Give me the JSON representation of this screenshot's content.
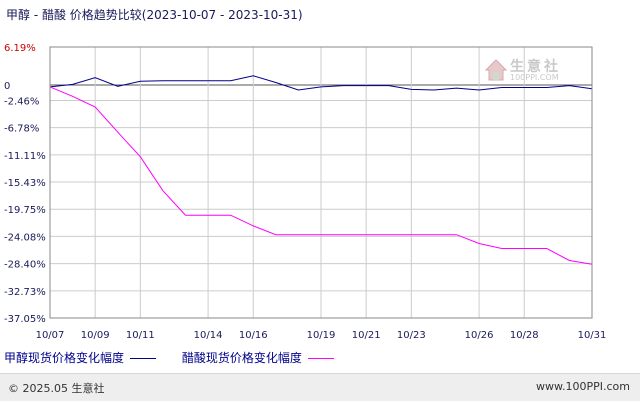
{
  "title": "甲醇 - 醋酸 价格趋势比较(2023-10-07 - 2023-10-31)",
  "chart_data": {
    "type": "line",
    "ylim": [
      -37.05,
      6.19
    ],
    "y_ticks": [
      6.19,
      0,
      -2.46,
      -6.78,
      -11.11,
      -15.43,
      -19.75,
      -24.08,
      -28.4,
      -32.73,
      -37.05
    ],
    "y_tick_labels": [
      "6.19%",
      "0",
      "-2.46%",
      "-6.78%",
      "-11.11%",
      "-15.43%",
      "-19.75%",
      "-24.08%",
      "-28.40%",
      "-32.73%",
      "-37.05%"
    ],
    "x_start": "2023-10-07",
    "x_end": "2023-10-31",
    "x_ticks": [
      "2023-10-07",
      "2023-10-09",
      "2023-10-11",
      "2023-10-14",
      "2023-10-16",
      "2023-10-19",
      "2023-10-21",
      "2023-10-23",
      "2023-10-26",
      "2023-10-28",
      "2023-10-31"
    ],
    "x_tick_labels": [
      "10/07",
      "10/09",
      "10/11",
      "10/14",
      "10/16",
      "10/19",
      "10/21",
      "10/23",
      "10/26",
      "10/28",
      "10/31"
    ],
    "grid": true,
    "legend_position": "bottom-left",
    "series": [
      {
        "name": "甲醇现货价格变化幅度",
        "color": "#00008b",
        "points": [
          [
            "2023-10-07",
            -0.3
          ],
          [
            "2023-10-08",
            0.1
          ],
          [
            "2023-10-09",
            1.2
          ],
          [
            "2023-10-10",
            -0.2
          ],
          [
            "2023-10-11",
            0.6
          ],
          [
            "2023-10-12",
            0.7
          ],
          [
            "2023-10-13",
            0.7
          ],
          [
            "2023-10-14",
            0.7
          ],
          [
            "2023-10-15",
            0.7
          ],
          [
            "2023-10-16",
            1.5
          ],
          [
            "2023-10-17",
            0.4
          ],
          [
            "2023-10-18",
            -0.8
          ],
          [
            "2023-10-19",
            -0.3
          ],
          [
            "2023-10-20",
            -0.1
          ],
          [
            "2023-10-21",
            -0.1
          ],
          [
            "2023-10-22",
            -0.1
          ],
          [
            "2023-10-23",
            -0.7
          ],
          [
            "2023-10-24",
            -0.8
          ],
          [
            "2023-10-25",
            -0.5
          ],
          [
            "2023-10-26",
            -0.8
          ],
          [
            "2023-10-27",
            -0.4
          ],
          [
            "2023-10-28",
            -0.4
          ],
          [
            "2023-10-29",
            -0.4
          ],
          [
            "2023-10-30",
            -0.1
          ],
          [
            "2023-10-31",
            -0.6
          ]
        ]
      },
      {
        "name": "醋酸现货价格变化幅度",
        "color": "#ff00ff",
        "points": [
          [
            "2023-10-07",
            -0.3
          ],
          [
            "2023-10-08",
            -1.8
          ],
          [
            "2023-10-09",
            -3.5
          ],
          [
            "2023-10-10",
            -7.5
          ],
          [
            "2023-10-11",
            -11.4
          ],
          [
            "2023-10-12",
            -16.8
          ],
          [
            "2023-10-13",
            -20.7
          ],
          [
            "2023-10-14",
            -20.7
          ],
          [
            "2023-10-15",
            -20.7
          ],
          [
            "2023-10-16",
            -22.4
          ],
          [
            "2023-10-17",
            -23.8
          ],
          [
            "2023-10-18",
            -23.8
          ],
          [
            "2023-10-19",
            -23.8
          ],
          [
            "2023-10-20",
            -23.8
          ],
          [
            "2023-10-21",
            -23.8
          ],
          [
            "2023-10-22",
            -23.8
          ],
          [
            "2023-10-23",
            -23.8
          ],
          [
            "2023-10-24",
            -23.8
          ],
          [
            "2023-10-25",
            -23.8
          ],
          [
            "2023-10-26",
            -25.2
          ],
          [
            "2023-10-27",
            -26.0
          ],
          [
            "2023-10-28",
            -26.0
          ],
          [
            "2023-10-29",
            -26.0
          ],
          [
            "2023-10-30",
            -27.9
          ],
          [
            "2023-10-31",
            -28.5
          ]
        ]
      }
    ]
  },
  "watermark": {
    "name": "生意社",
    "url": "100PPI.COM"
  },
  "footer": {
    "copyright": "© 2025.05 生意社",
    "site": "www.100PPI.com"
  }
}
